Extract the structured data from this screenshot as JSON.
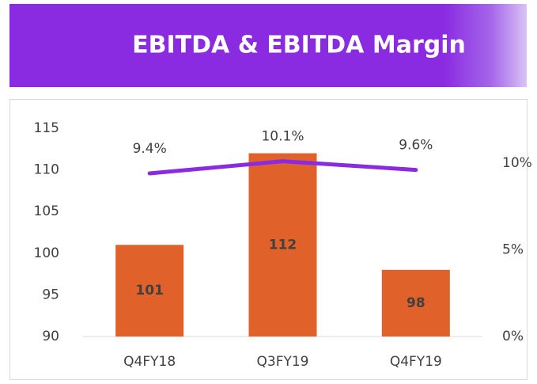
{
  "chart_data": {
    "type": "bar-line",
    "title": "EBITDA & EBITDA Margin",
    "categories": [
      "Q4FY18",
      "Q3FY19",
      "Q4FY19"
    ],
    "series": [
      {
        "name": "EBITDA",
        "type": "bar",
        "color": "#e0622a",
        "values": [
          101,
          112,
          98
        ]
      },
      {
        "name": "EBITDA Margin",
        "type": "line",
        "axis": "y2",
        "color": "#8a2be2",
        "values": [
          9.4,
          10.1,
          9.6
        ],
        "value_labels": [
          "9.4%",
          "10.1%",
          "9.6%"
        ]
      }
    ],
    "ylim": [
      90,
      115
    ],
    "yticks": [
      90,
      95,
      100,
      105,
      110,
      115
    ],
    "y2lim": [
      0,
      12
    ],
    "y2ticks": [
      {
        "value": 0,
        "label": "0%"
      },
      {
        "value": 5,
        "label": "5%"
      },
      {
        "value": 10,
        "label": "10%"
      }
    ],
    "grid": false
  }
}
